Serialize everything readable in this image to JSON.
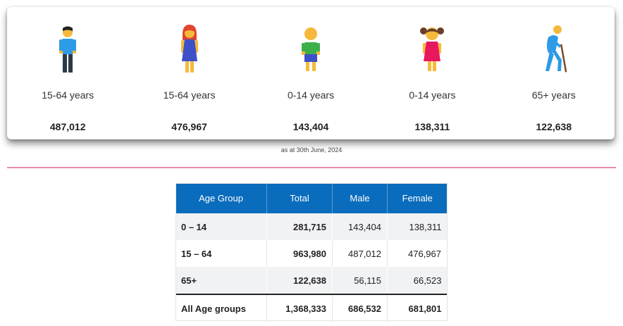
{
  "stats": [
    {
      "icon": "man-icon",
      "label": "15-64 years",
      "value": "487,012"
    },
    {
      "icon": "woman-icon",
      "label": "15-64 years",
      "value": "476,967"
    },
    {
      "icon": "boy-icon",
      "label": "0-14 years",
      "value": "143,404"
    },
    {
      "icon": "girl-icon",
      "label": "0-14 years",
      "value": "138,311"
    },
    {
      "icon": "elderly-person-icon",
      "label": "65+ years",
      "value": "122,638"
    }
  ],
  "note": "as at 30th June, 2024",
  "table": {
    "headers": [
      "Age Group",
      "Total",
      "Male",
      "Female"
    ],
    "rows": [
      [
        "0 – 14",
        "281,715",
        "143,404",
        "138,311"
      ],
      [
        "15 – 64",
        "963,980",
        "487,012",
        "476,967"
      ],
      [
        "65+",
        "122,638",
        "56,115",
        "66,523"
      ]
    ],
    "total": [
      "All Age groups",
      "1,368,333",
      "686,532",
      "681,801"
    ]
  },
  "colors": {
    "header": "#0a6cbd",
    "divider": "#e58ea6",
    "shirt_blue": "#2e9be6",
    "dress_blue": "#3d50c8",
    "shirt_green": "#3bb04a",
    "dress_pink": "#e8185f",
    "skin": "#f6b93b"
  }
}
